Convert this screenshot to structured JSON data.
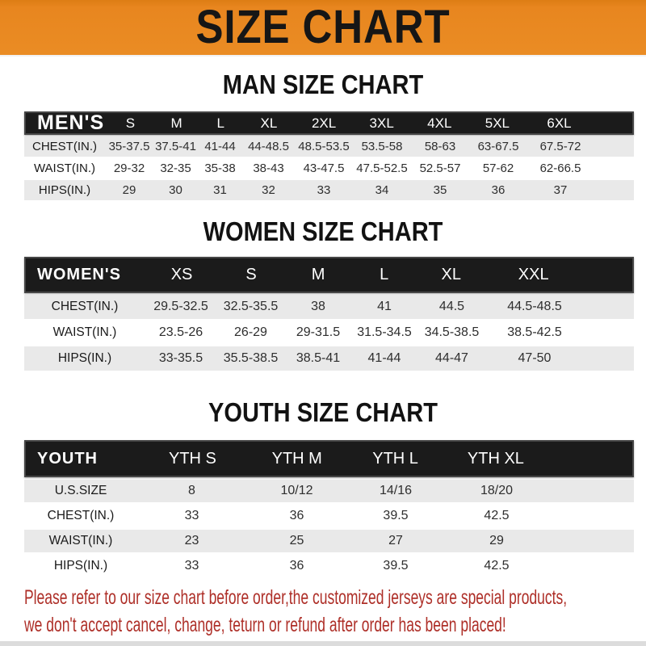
{
  "banner": {
    "title": "SIZE CHART",
    "bg_color": "#E8861F",
    "text_color": "#161616"
  },
  "colors": {
    "header_bar": "#1B1B1B",
    "row_gray": "#E9E9E9",
    "row_white": "#FFFFFF",
    "footer_red": "#AE2F28"
  },
  "chart_data": [
    {
      "type": "table",
      "title": "MAN SIZE CHART",
      "columns": [
        "MEN'S",
        "S",
        "M",
        "L",
        "XL",
        "2XL",
        "3XL",
        "4XL",
        "5XL",
        "6XL"
      ],
      "rows": [
        [
          "CHEST(IN.)",
          "35-37.5",
          "37.5-41",
          "41-44",
          "44-48.5",
          "48.5-53.5",
          "53.5-58",
          "58-63",
          "63-67.5",
          "67.5-72"
        ],
        [
          "WAIST(IN.)",
          "29-32",
          "32-35",
          "35-38",
          "38-43",
          "43-47.5",
          "47.5-52.5",
          "52.5-57",
          "57-62",
          "62-66.5"
        ],
        [
          "HIPS(IN.)",
          "29",
          "30",
          "31",
          "32",
          "33",
          "34",
          "35",
          "36",
          "37"
        ]
      ]
    },
    {
      "type": "table",
      "title": "WOMEN SIZE CHART",
      "columns": [
        "WOMEN'S",
        "XS",
        "S",
        "M",
        "L",
        "XL",
        "XXL"
      ],
      "rows": [
        [
          "CHEST(IN.)",
          "29.5-32.5",
          "32.5-35.5",
          "38",
          "41",
          "44.5",
          "44.5-48.5"
        ],
        [
          "WAIST(IN.)",
          "23.5-26",
          "26-29",
          "29-31.5",
          "31.5-34.5",
          "34.5-38.5",
          "38.5-42.5"
        ],
        [
          "HIPS(IN.)",
          "33-35.5",
          "35.5-38.5",
          "38.5-41",
          "41-44",
          "44-47",
          "47-50"
        ]
      ]
    },
    {
      "type": "table",
      "title": "YOUTH SIZE CHART",
      "columns": [
        "YOUTH",
        "YTH S",
        "YTH M",
        "YTH L",
        "YTH XL"
      ],
      "rows": [
        [
          "U.S.SIZE",
          "8",
          "10/12",
          "14/16",
          "18/20"
        ],
        [
          "CHEST(IN.)",
          "33",
          "36",
          "39.5",
          "42.5"
        ],
        [
          "WAIST(IN.)",
          "23",
          "25",
          "27",
          "29"
        ],
        [
          "HIPS(IN.)",
          "33",
          "36",
          "39.5",
          "42.5"
        ]
      ]
    }
  ],
  "footer": {
    "line1": "Please refer to our size chart before order,the customized jerseys are special products,",
    "line2": "we don't accept cancel, change, teturn or refund after order has been placed!"
  }
}
